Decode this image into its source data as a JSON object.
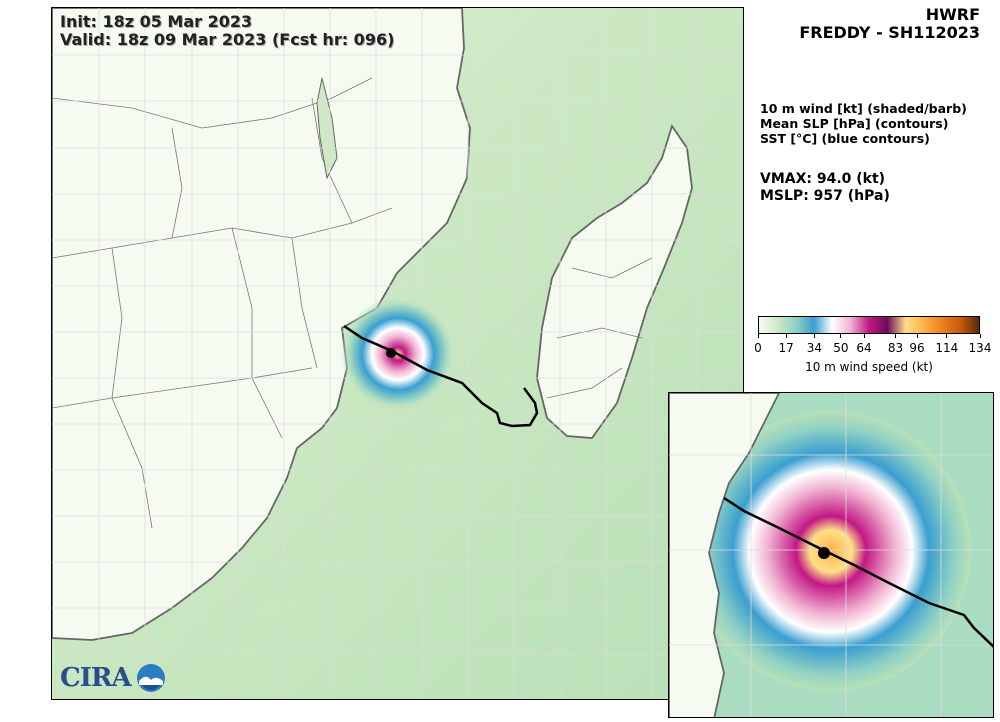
{
  "map": {
    "init_label": "Init:   18z 05 Mar 2023",
    "valid_label": "Valid: 18z 09 Mar 2023 (Fcst hr: 096)"
  },
  "header": {
    "model": "HWRF",
    "storm": "FREDDY - SH112023"
  },
  "fields": [
    "10 m wind [kt] (shaded/barb)",
    "Mean SLP [hPa] (contours)",
    "SST [°C] (blue contours)"
  ],
  "metrics": {
    "vmax": "VMAX:  94.0 (kt)",
    "mslp": "MSLP:  957 (hPa)"
  },
  "colorbar": {
    "ticks": [
      "0",
      "17",
      "34",
      "50",
      "64",
      "83",
      "96",
      "114",
      "134"
    ],
    "tick_values": [
      0,
      17,
      34,
      50,
      64,
      83,
      96,
      114,
      134
    ],
    "range": [
      0,
      134
    ],
    "label": "10 m wind speed (kt)",
    "colors": [
      "#f7fbf3",
      "#cfe9c6",
      "#90d1c4",
      "#3a9fd0",
      "#ffffff",
      "#f0b0d0",
      "#c21884",
      "#6e0a5a",
      "#ffe08a",
      "#fcb046",
      "#ee7f1e",
      "#c85a0a",
      "#5a2a0a"
    ]
  },
  "logo": {
    "text": "CIRA"
  }
}
